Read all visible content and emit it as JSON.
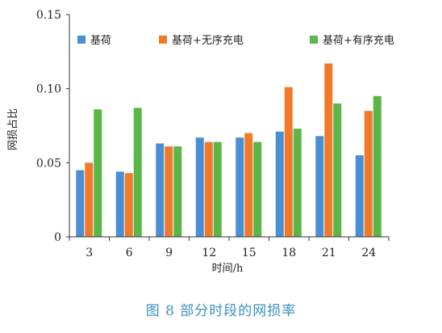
{
  "caption": "图 8   部分时段的网损率",
  "chart_data": {
    "type": "bar",
    "title": "",
    "xlabel": "时间/h",
    "ylabel": "网损占比",
    "ylim": [
      0,
      0.15
    ],
    "yticks": [
      "0",
      "0.05",
      "0.10",
      "0.15"
    ],
    "ytick_values": [
      0,
      0.05,
      0.1,
      0.15
    ],
    "categories": [
      "3",
      "6",
      "9",
      "12",
      "15",
      "18",
      "21",
      "24"
    ],
    "grid": false,
    "legend_position": "top",
    "series": [
      {
        "name": "基荷",
        "color": "#4a8fd4",
        "values": [
          0.045,
          0.044,
          0.063,
          0.067,
          0.067,
          0.071,
          0.068,
          0.055
        ]
      },
      {
        "name": "基荷+无序充电",
        "color": "#f07a2a",
        "values": [
          0.05,
          0.043,
          0.061,
          0.064,
          0.07,
          0.101,
          0.117,
          0.085
        ]
      },
      {
        "name": "基荷+有序充电",
        "color": "#5cb547",
        "values": [
          0.086,
          0.087,
          0.061,
          0.064,
          0.064,
          0.073,
          0.09,
          0.095
        ]
      }
    ]
  }
}
